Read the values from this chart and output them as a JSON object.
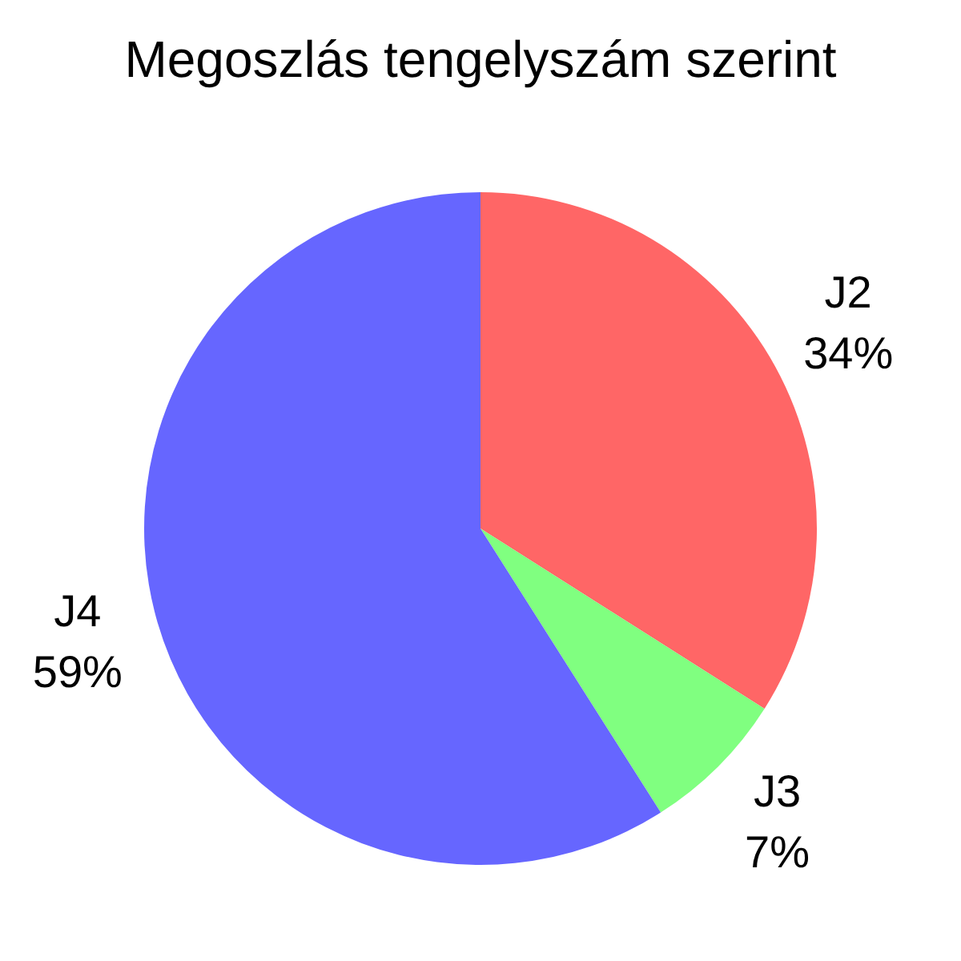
{
  "chart_data": {
    "type": "pie",
    "title": "Megoszlás tengelyszám szerint",
    "categories": [
      "J2",
      "J3",
      "J4"
    ],
    "values": [
      34,
      7,
      59
    ],
    "colors": [
      "#ff6666",
      "#80ff80",
      "#6666ff"
    ],
    "value_labels": [
      "34%",
      "7%",
      "59%"
    ],
    "legend": false
  }
}
